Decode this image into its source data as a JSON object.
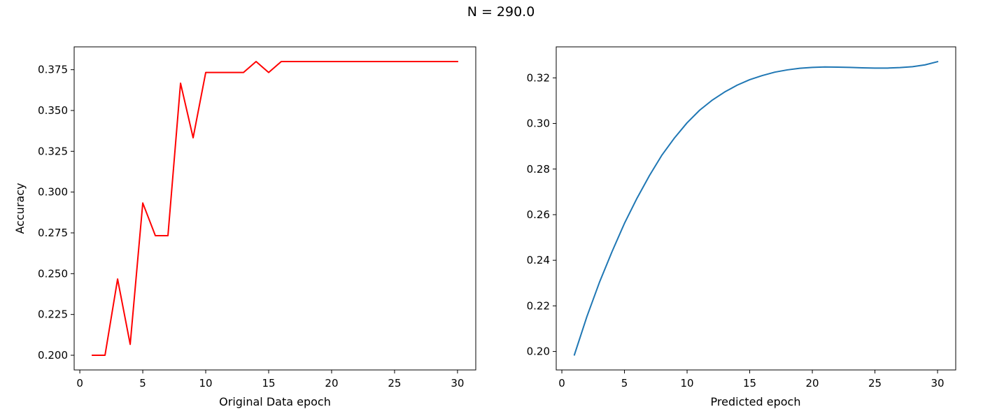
{
  "figure": {
    "suptitle": "N = 290.0"
  },
  "chart_data": [
    {
      "type": "line",
      "title": "",
      "xlabel": "Original Data epoch",
      "ylabel": "Accuracy",
      "xlim": [
        -0.45,
        31.45
      ],
      "ylim": [
        0.191,
        0.389
      ],
      "xticks": [
        0,
        5,
        10,
        15,
        20,
        25,
        30
      ],
      "xtick_labels": [
        "0",
        "5",
        "10",
        "15",
        "20",
        "25",
        "30"
      ],
      "yticks": [
        0.2,
        0.225,
        0.25,
        0.275,
        0.3,
        0.325,
        0.35,
        0.375
      ],
      "ytick_labels": [
        "0.200",
        "0.225",
        "0.250",
        "0.275",
        "0.300",
        "0.325",
        "0.350",
        "0.375"
      ],
      "grid": false,
      "series": [
        {
          "color": "#ff0000",
          "x": [
            1,
            2,
            3,
            4,
            5,
            6,
            7,
            8,
            9,
            10,
            11,
            12,
            13,
            14,
            15,
            16,
            17,
            18,
            19,
            20,
            21,
            22,
            23,
            24,
            25,
            26,
            27,
            28,
            29,
            30
          ],
          "values": [
            0.2,
            0.2,
            0.2467,
            0.2067,
            0.2933,
            0.2733,
            0.2733,
            0.3667,
            0.3333,
            0.3733,
            0.3733,
            0.3733,
            0.3733,
            0.38,
            0.3733,
            0.38,
            0.38,
            0.38,
            0.38,
            0.38,
            0.38,
            0.38,
            0.38,
            0.38,
            0.38,
            0.38,
            0.38,
            0.38,
            0.38,
            0.38
          ]
        }
      ]
    },
    {
      "type": "line",
      "title": "",
      "xlabel": "Predicted epoch",
      "ylabel": "",
      "xlim": [
        -0.45,
        31.45
      ],
      "ylim": [
        0.1919,
        0.3336
      ],
      "xticks": [
        0,
        5,
        10,
        15,
        20,
        25,
        30
      ],
      "xtick_labels": [
        "0",
        "5",
        "10",
        "15",
        "20",
        "25",
        "30"
      ],
      "yticks": [
        0.2,
        0.22,
        0.24,
        0.26,
        0.28,
        0.3,
        0.32
      ],
      "ytick_labels": [
        "0.20",
        "0.22",
        "0.24",
        "0.26",
        "0.28",
        "0.30",
        "0.32"
      ],
      "grid": false,
      "series": [
        {
          "color": "#1f77b4",
          "x": [
            1,
            2,
            3,
            4,
            5,
            6,
            7,
            8,
            9,
            10,
            11,
            12,
            13,
            14,
            15,
            16,
            17,
            18,
            19,
            20,
            21,
            22,
            23,
            24,
            25,
            26,
            27,
            28,
            29,
            30
          ],
          "values": [
            0.1985,
            0.2153,
            0.2303,
            0.2437,
            0.2562,
            0.2672,
            0.2772,
            0.2862,
            0.2937,
            0.3003,
            0.3058,
            0.3102,
            0.3138,
            0.3168,
            0.3192,
            0.321,
            0.3225,
            0.3235,
            0.3242,
            0.3246,
            0.3248,
            0.3247,
            0.3246,
            0.3244,
            0.3243,
            0.3243,
            0.3245,
            0.3249,
            0.3257,
            0.3271
          ]
        }
      ]
    }
  ]
}
